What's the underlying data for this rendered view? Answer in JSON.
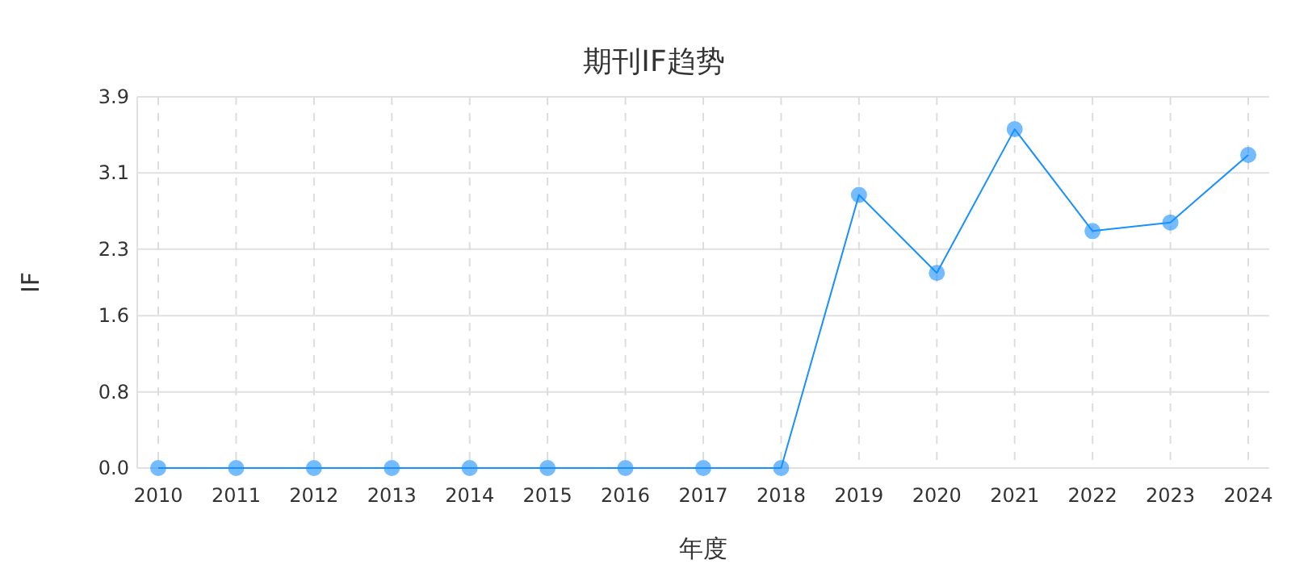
{
  "chart_data": {
    "type": "line",
    "title": "期刊IF趋势",
    "xlabel": "年度",
    "ylabel": "IF",
    "categories": [
      "2010",
      "2011",
      "2012",
      "2013",
      "2014",
      "2015",
      "2016",
      "2017",
      "2018",
      "2019",
      "2020",
      "2021",
      "2022",
      "2023",
      "2024"
    ],
    "series": [
      {
        "color": "#1890ff",
        "values": [
          0,
          0,
          0,
          0,
          0,
          0,
          0,
          0,
          0,
          2.87,
          2.05,
          3.56,
          2.49,
          2.58,
          3.29
        ]
      }
    ],
    "ylim": [
      0,
      3.9
    ],
    "yticks": [
      {
        "value": 0,
        "label": "0.0"
      },
      0.8,
      1.6,
      2.3,
      3.1,
      3.9
    ],
    "grid": true,
    "marker": "circle",
    "line_style": "solid"
  }
}
